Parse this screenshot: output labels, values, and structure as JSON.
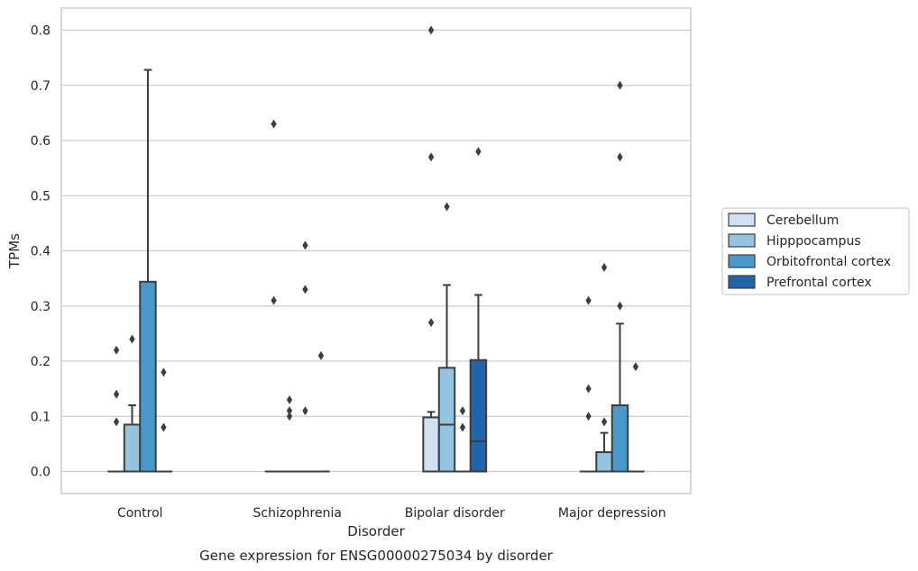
{
  "chart_data": {
    "type": "box",
    "title": "",
    "caption": "Gene expression for ENSG00000275034 by disorder",
    "xlabel": "Disorder",
    "ylabel": "TPMs",
    "ylim": [
      -0.04,
      0.84
    ],
    "yticks": [
      "0.0",
      "0.1",
      "0.2",
      "0.3",
      "0.4",
      "0.5",
      "0.6",
      "0.7",
      "0.8"
    ],
    "grid": "horizontal",
    "legend_position": "right",
    "categories": [
      "Control",
      "Schizophrenia",
      "Bipolar disorder",
      "Major depression"
    ],
    "series": [
      {
        "name": "Cerebellum",
        "color": "#d0e1f2",
        "boxes": [
          {
            "q1": 0,
            "median": 0,
            "q3": 0,
            "whisker_low": 0,
            "whisker_high": 0,
            "outliers": [
              0.22,
              0.14,
              0.09
            ]
          },
          {
            "q1": 0,
            "median": 0,
            "q3": 0,
            "whisker_low": 0,
            "whisker_high": 0,
            "outliers": [
              0.63,
              0.31
            ]
          },
          {
            "q1": 0,
            "median": 0,
            "q3": 0.098,
            "whisker_low": 0,
            "whisker_high": 0.108,
            "outliers": [
              0.8,
              0.57,
              0.27
            ]
          },
          {
            "q1": 0,
            "median": 0,
            "q3": 0,
            "whisker_low": 0,
            "whisker_high": 0,
            "outliers": [
              0.31,
              0.15,
              0.1
            ]
          }
        ]
      },
      {
        "name": "Hipppocampus",
        "color": "#94c4df",
        "boxes": [
          {
            "q1": 0,
            "median": 0,
            "q3": 0.085,
            "whisker_low": 0,
            "whisker_high": 0.12,
            "outliers": [
              0.24
            ]
          },
          {
            "q1": 0,
            "median": 0,
            "q3": 0,
            "whisker_low": 0,
            "whisker_high": 0,
            "outliers": [
              0.13,
              0.11,
              0.1
            ]
          },
          {
            "q1": 0,
            "median": 0.085,
            "q3": 0.188,
            "whisker_low": 0,
            "whisker_high": 0.338,
            "outliers": [
              0.48
            ]
          },
          {
            "q1": 0,
            "median": 0,
            "q3": 0.035,
            "whisker_low": 0,
            "whisker_high": 0.07,
            "outliers": [
              0.37,
              0.09
            ]
          }
        ]
      },
      {
        "name": "Orbitofrontal cortex",
        "color": "#4a98c9",
        "boxes": [
          {
            "q1": 0,
            "median": 0,
            "q3": 0.344,
            "whisker_low": 0,
            "whisker_high": 0.728,
            "outliers": []
          },
          {
            "q1": 0,
            "median": 0,
            "q3": 0,
            "whisker_low": 0,
            "whisker_high": 0,
            "outliers": [
              0.41,
              0.33,
              0.11
            ]
          },
          {
            "q1": 0,
            "median": 0,
            "q3": 0,
            "whisker_low": 0,
            "whisker_high": 0,
            "outliers": [
              0.11,
              0.08
            ]
          },
          {
            "q1": 0,
            "median": 0,
            "q3": 0.12,
            "whisker_low": 0,
            "whisker_high": 0.268,
            "outliers": [
              0.7,
              0.57,
              0.3
            ]
          }
        ]
      },
      {
        "name": "Prefrontal cortex",
        "color": "#2264aa",
        "boxes": [
          {
            "q1": 0,
            "median": 0,
            "q3": 0,
            "whisker_low": 0,
            "whisker_high": 0,
            "outliers": [
              0.18,
              0.08
            ]
          },
          {
            "q1": 0,
            "median": 0,
            "q3": 0,
            "whisker_low": 0,
            "whisker_high": 0,
            "outliers": [
              0.21
            ]
          },
          {
            "q1": 0,
            "median": 0.055,
            "q3": 0.202,
            "whisker_low": 0,
            "whisker_high": 0.32,
            "outliers": [
              0.58
            ]
          },
          {
            "q1": 0,
            "median": 0,
            "q3": 0,
            "whisker_low": 0,
            "whisker_high": 0,
            "outliers": [
              0.19
            ]
          }
        ]
      }
    ]
  }
}
